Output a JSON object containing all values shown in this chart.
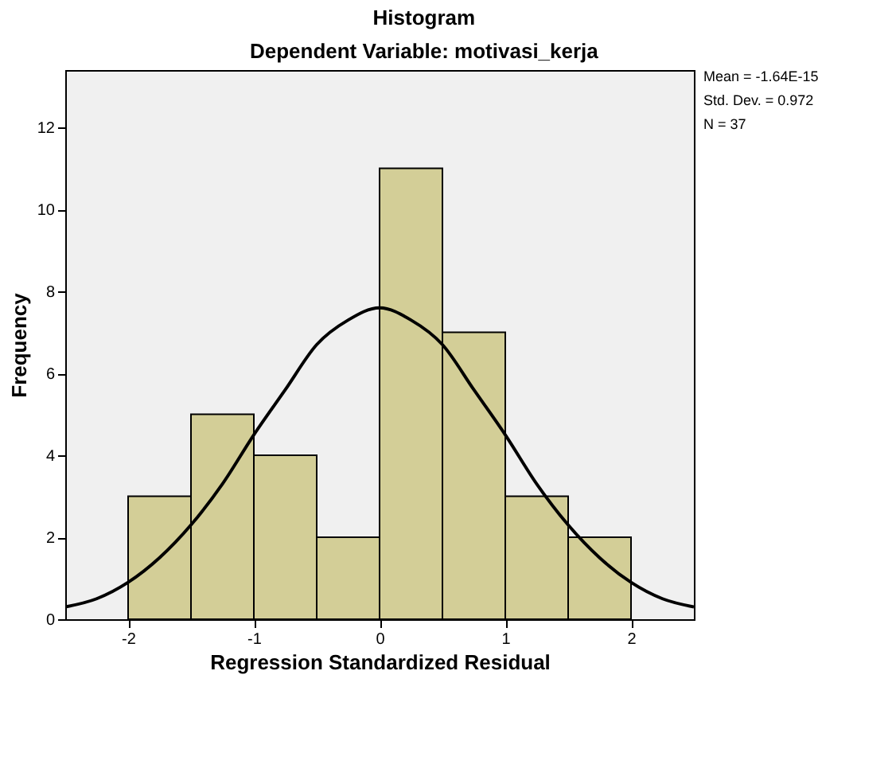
{
  "chart_data": {
    "type": "histogram",
    "title": "Histogram",
    "subtitle": "Dependent Variable: motivasi_kerja",
    "xlabel": "Regression Standardized Residual",
    "ylabel": "Frequency",
    "bins": [
      -2,
      -1.5,
      -1,
      -0.5,
      0,
      0.5,
      1,
      1.5,
      2
    ],
    "values": [
      3,
      5,
      4,
      2,
      11,
      7,
      3,
      2
    ],
    "color": "#d3ce97",
    "series": [
      {
        "type": "line",
        "color": "#000000",
        "x": [
          -2.5,
          -2.25,
          -2,
          -1.75,
          -1.5,
          -1.25,
          -1,
          -0.75,
          -0.5,
          -0.25,
          0,
          0.25,
          0.5,
          0.75,
          1,
          1.25,
          1.5,
          1.75,
          2,
          2.25,
          2.5
        ],
        "values": [
          0.3,
          0.5,
          0.9,
          1.5,
          2.3,
          3.3,
          4.5,
          5.6,
          6.7,
          7.3,
          7.6,
          7.3,
          6.7,
          5.6,
          4.5,
          3.3,
          2.3,
          1.5,
          0.9,
          0.5,
          0.3
        ]
      }
    ],
    "xlim": [
      -2.5,
      2.5
    ],
    "xticks": [
      -2,
      -1,
      0,
      1,
      2
    ],
    "ylim": [
      0,
      13.4
    ],
    "yticks": [
      0,
      2,
      4,
      6,
      8,
      10,
      12
    ],
    "grid": false,
    "annotations": [
      "Mean = -1.64E-15",
      "Std. Dev. = 0.972",
      "N = 37"
    ]
  }
}
